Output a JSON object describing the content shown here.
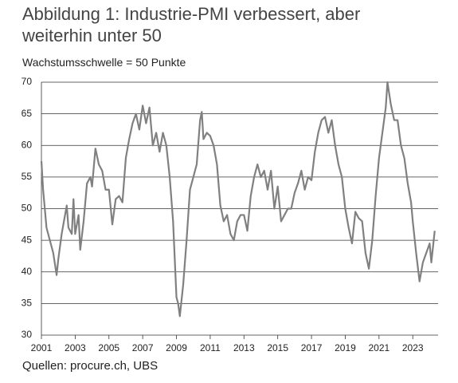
{
  "chart_data": {
    "type": "line",
    "title": "Abbildung 1: Industrie-PMI verbessert, aber weiterhin unter 50",
    "subtitle": "Wachstumsschwelle = 50 Punkte",
    "source": "Quellen: procure.ch, UBS",
    "xlim": [
      2001,
      2024.5
    ],
    "xticks": [
      2001,
      2003,
      2005,
      2007,
      2009,
      2011,
      2013,
      2015,
      2017,
      2019,
      2021,
      2023
    ],
    "ylim": [
      30,
      70
    ],
    "yticks": [
      30,
      35,
      40,
      45,
      50,
      55,
      60,
      65,
      70
    ],
    "grid": true,
    "series": [
      {
        "color": "#808080",
        "x": [
          2001.0,
          2001.1,
          2001.3,
          2001.5,
          2001.7,
          2001.9,
          2002.0,
          2002.2,
          2002.4,
          2002.5,
          2002.6,
          2002.8,
          2002.9,
          2003.0,
          2003.2,
          2003.3,
          2003.5,
          2003.7,
          2003.9,
          2004.0,
          2004.2,
          2004.4,
          2004.6,
          2004.8,
          2005.0,
          2005.2,
          2005.4,
          2005.6,
          2005.8,
          2006.0,
          2006.2,
          2006.4,
          2006.6,
          2006.8,
          2007.0,
          2007.2,
          2007.4,
          2007.6,
          2007.8,
          2008.0,
          2008.2,
          2008.4,
          2008.6,
          2008.8,
          2009.0,
          2009.1,
          2009.2,
          2009.4,
          2009.6,
          2009.8,
          2010.0,
          2010.2,
          2010.4,
          2010.5,
          2010.6,
          2010.8,
          2011.0,
          2011.2,
          2011.4,
          2011.6,
          2011.8,
          2012.0,
          2012.2,
          2012.4,
          2012.6,
          2012.8,
          2013.0,
          2013.2,
          2013.4,
          2013.6,
          2013.8,
          2014.0,
          2014.2,
          2014.4,
          2014.6,
          2014.8,
          2015.0,
          2015.2,
          2015.4,
          2015.6,
          2015.8,
          2016.0,
          2016.2,
          2016.4,
          2016.6,
          2016.8,
          2017.0,
          2017.2,
          2017.4,
          2017.6,
          2017.8,
          2018.0,
          2018.2,
          2018.4,
          2018.6,
          2018.8,
          2019.0,
          2019.2,
          2019.4,
          2019.6,
          2019.8,
          2020.0,
          2020.2,
          2020.4,
          2020.6,
          2020.8,
          2021.0,
          2021.2,
          2021.4,
          2021.5,
          2021.7,
          2021.9,
          2022.1,
          2022.3,
          2022.5,
          2022.7,
          2022.9,
          2023.0,
          2023.2,
          2023.4,
          2023.6,
          2023.8,
          2024.0,
          2024.1,
          2024.3
        ],
        "values": [
          57.5,
          53,
          47,
          45,
          43,
          39.5,
          42,
          46,
          49,
          50.5,
          47,
          46,
          51.5,
          46,
          49,
          43.5,
          48,
          54,
          55,
          53.5,
          59.5,
          57,
          56,
          53,
          53,
          47.5,
          51.5,
          52,
          51,
          58,
          61,
          63.5,
          65,
          62.5,
          66.3,
          63.5,
          66,
          60,
          62,
          59,
          62,
          60,
          55,
          48,
          36,
          35,
          33,
          38,
          45,
          53,
          55,
          57,
          64,
          65.3,
          61,
          62,
          61.5,
          60,
          57,
          50.5,
          48,
          49,
          46,
          45,
          48,
          49,
          49,
          46.5,
          52,
          55,
          57,
          55,
          56,
          53,
          56,
          50,
          53.5,
          48,
          49,
          50,
          50,
          52.5,
          54,
          56,
          53,
          55,
          54.5,
          59,
          62,
          64,
          64.5,
          62,
          64,
          60,
          57,
          55,
          50,
          47,
          44.5,
          49.5,
          48.5,
          48,
          43,
          40.5,
          45,
          52,
          58,
          62,
          66,
          70,
          66.5,
          64,
          64,
          60,
          58,
          54,
          51,
          48,
          43,
          38.5,
          41.5,
          43,
          44.5,
          41.5,
          46.5
        ]
      }
    ]
  }
}
